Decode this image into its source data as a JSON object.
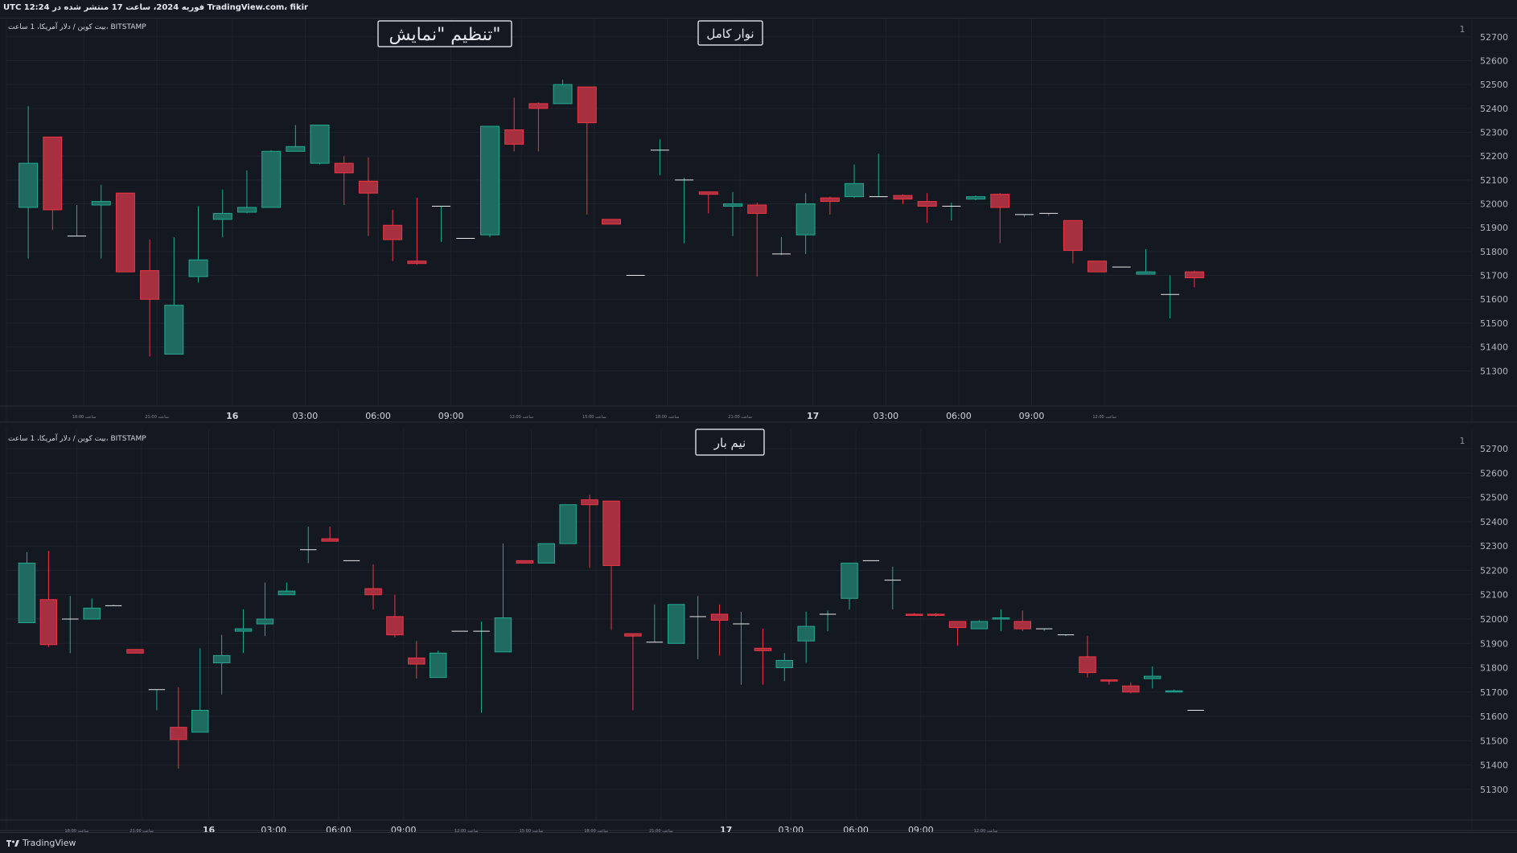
{
  "header": {
    "caption": "UTC 12:24 فوریه 2024، ساعت 17 منتشر شده در TradingView.com، fikir"
  },
  "footer": {
    "brand": "TradingView"
  },
  "colors": {
    "up": "#22ab94",
    "up_fill": "#1f6b5f",
    "down": "#f23645",
    "down_fill": "#a6303f",
    "grid": "#1f232c",
    "bg": "#141821"
  },
  "chart_data": [
    {
      "type": "candlestick",
      "symbol_label": "بیت کوین / دلار آمریکا، 1 ساعت، BITSTAMP",
      "title": "نوار کامل",
      "annotation": "تنظیم \"نمایش\"",
      "scale_marker": "1",
      "y_ticks": [
        52700,
        52600,
        52500,
        52400,
        52300,
        52200,
        52100,
        52000,
        51900,
        51800,
        51700,
        51600,
        51500,
        51400,
        51300
      ],
      "ylim": [
        51220,
        52760
      ],
      "x_major_ticks": [
        {
          "index": 8.4,
          "label": "16"
        },
        {
          "index": 11.4,
          "label": "03:00"
        },
        {
          "index": 14.4,
          "label": "06:00"
        },
        {
          "index": 17.4,
          "label": "09:00"
        },
        {
          "index": 32.3,
          "label": "17"
        },
        {
          "index": 35.3,
          "label": "03:00"
        },
        {
          "index": 38.3,
          "label": "06:00"
        },
        {
          "index": 41.3,
          "label": "09:00"
        }
      ],
      "x_minor_ticks": [
        {
          "index": 2.3,
          "label": "18:00 ساعت"
        },
        {
          "index": 5.3,
          "label": "21:00 ساعت"
        },
        {
          "index": 20.3,
          "label": "12:00 ساعت"
        },
        {
          "index": 23.3,
          "label": "15:00 ساعت"
        },
        {
          "index": 26.3,
          "label": "18:00 ساعت"
        },
        {
          "index": 29.3,
          "label": "21:00 ساعت"
        },
        {
          "index": 44.3,
          "label": "12:00 ساعت"
        }
      ],
      "candles": [
        {
          "o": 51985,
          "h": 52410,
          "l": 51770,
          "c": 52170
        },
        {
          "o": 52280,
          "h": 52280,
          "l": 51890,
          "c": 51975
        },
        {
          "o": 51865,
          "h": 51995,
          "l": 51865,
          "c": 51865
        },
        {
          "o": 51995,
          "h": 52080,
          "l": 51770,
          "c": 52010
        },
        {
          "o": 52045,
          "h": 52045,
          "l": 51715,
          "c": 51715
        },
        {
          "o": 51720,
          "h": 51850,
          "l": 51360,
          "c": 51600
        },
        {
          "o": 51370,
          "h": 51860,
          "l": 51370,
          "c": 51575
        },
        {
          "o": 51695,
          "h": 51990,
          "l": 51670,
          "c": 51765
        },
        {
          "o": 51935,
          "h": 52060,
          "l": 51860,
          "c": 51960
        },
        {
          "o": 51965,
          "h": 52140,
          "l": 51960,
          "c": 51985
        },
        {
          "o": 51985,
          "h": 52225,
          "l": 51985,
          "c": 52220
        },
        {
          "o": 52220,
          "h": 52330,
          "l": 52220,
          "c": 52240
        },
        {
          "o": 52170,
          "h": 52325,
          "l": 52165,
          "c": 52330
        },
        {
          "o": 52170,
          "h": 52200,
          "l": 51995,
          "c": 52130
        },
        {
          "o": 52095,
          "h": 52195,
          "l": 51865,
          "c": 52045
        },
        {
          "o": 51910,
          "h": 51975,
          "l": 51760,
          "c": 51850
        },
        {
          "o": 51760,
          "h": 52025,
          "l": 51745,
          "c": 51750
        },
        {
          "o": 51990,
          "h": 51990,
          "l": 51840,
          "c": 51990
        },
        {
          "o": 51855,
          "h": 51855,
          "l": 51855,
          "c": 51855
        },
        {
          "o": 51870,
          "h": 52320,
          "l": 51860,
          "c": 52325
        },
        {
          "o": 52310,
          "h": 52445,
          "l": 52220,
          "c": 52250
        },
        {
          "o": 52420,
          "h": 52425,
          "l": 52220,
          "c": 52400
        },
        {
          "o": 52420,
          "h": 52520,
          "l": 52420,
          "c": 52500
        },
        {
          "o": 52490,
          "h": 52490,
          "l": 51955,
          "c": 52340
        },
        {
          "o": 51935,
          "h": 51935,
          "l": 51915,
          "c": 51915
        },
        {
          "o": 51700,
          "h": 51700,
          "l": 51700,
          "c": 51700
        },
        {
          "o": 52220,
          "h": 52270,
          "l": 52120,
          "c": 52225
        },
        {
          "o": 52100,
          "h": 52110,
          "l": 51835,
          "c": 52100
        },
        {
          "o": 52050,
          "h": 52050,
          "l": 51960,
          "c": 52040
        },
        {
          "o": 51990,
          "h": 52050,
          "l": 51865,
          "c": 52000
        },
        {
          "o": 51995,
          "h": 52005,
          "l": 51695,
          "c": 51960
        },
        {
          "o": 51785,
          "h": 51860,
          "l": 51785,
          "c": 51790
        },
        {
          "o": 51870,
          "h": 52045,
          "l": 51790,
          "c": 52000
        },
        {
          "o": 52025,
          "h": 52030,
          "l": 51955,
          "c": 52010
        },
        {
          "o": 52030,
          "h": 52165,
          "l": 52025,
          "c": 52085
        },
        {
          "o": 52030,
          "h": 52210,
          "l": 52030,
          "c": 52030
        },
        {
          "o": 52035,
          "h": 52040,
          "l": 52000,
          "c": 52020
        },
        {
          "o": 52010,
          "h": 52045,
          "l": 51920,
          "c": 51990
        },
        {
          "o": 51990,
          "h": 52005,
          "l": 51930,
          "c": 51990
        },
        {
          "o": 52020,
          "h": 52035,
          "l": 52015,
          "c": 52030
        },
        {
          "o": 52040,
          "h": 52045,
          "l": 51835,
          "c": 51985
        },
        {
          "o": 51950,
          "h": 51955,
          "l": 51945,
          "c": 51955
        },
        {
          "o": 51960,
          "h": 51960,
          "l": 51950,
          "c": 51955
        },
        {
          "o": 51930,
          "h": 51930,
          "l": 51750,
          "c": 51805
        },
        {
          "o": 51760,
          "h": 51760,
          "l": 51715,
          "c": 51715
        },
        {
          "o": 51735,
          "h": 51735,
          "l": 51735,
          "c": 51735
        },
        {
          "o": 51705,
          "h": 51810,
          "l": 51705,
          "c": 51715
        },
        {
          "o": 51620,
          "h": 51700,
          "l": 51520,
          "c": 51620
        },
        {
          "o": 51715,
          "h": 51720,
          "l": 51650,
          "c": 51690
        }
      ]
    },
    {
      "type": "candlestick",
      "symbol_label": "بیت کوین / دلار آمریکا، 1 ساعت، BITSTAMP",
      "title": "نیم بار",
      "scale_marker": "1",
      "y_ticks": [
        52700,
        52600,
        52500,
        52400,
        52300,
        52200,
        52100,
        52000,
        51900,
        51800,
        51700,
        51600,
        51500,
        51400,
        51300
      ],
      "ylim": [
        51240,
        52760
      ],
      "x_major_ticks": [
        {
          "index": 8.4,
          "label": "16"
        },
        {
          "index": 11.4,
          "label": "03:00"
        },
        {
          "index": 14.4,
          "label": "06:00"
        },
        {
          "index": 17.4,
          "label": "09:00"
        },
        {
          "index": 32.3,
          "label": "17"
        },
        {
          "index": 35.3,
          "label": "03:00"
        },
        {
          "index": 38.3,
          "label": "06:00"
        },
        {
          "index": 41.3,
          "label": "09:00"
        }
      ],
      "x_minor_ticks": [
        {
          "index": 2.3,
          "label": "18:00 ساعت"
        },
        {
          "index": 5.3,
          "label": "21:00 ساعت"
        },
        {
          "index": 20.3,
          "label": "12:00 ساعت"
        },
        {
          "index": 23.3,
          "label": "15:00 ساعت"
        },
        {
          "index": 26.3,
          "label": "18:00 ساعت"
        },
        {
          "index": 29.3,
          "label": "21:00 ساعت"
        },
        {
          "index": 44.3,
          "label": "12:00 ساعت"
        }
      ],
      "candles": [
        {
          "o": 51985,
          "h": 52275,
          "l": 51985,
          "c": 52230
        },
        {
          "o": 52080,
          "h": 52280,
          "l": 51885,
          "c": 51895
        },
        {
          "o": 52000,
          "h": 52095,
          "l": 51860,
          "c": 52000
        },
        {
          "o": 52000,
          "h": 52085,
          "l": 52000,
          "c": 52045
        },
        {
          "o": 52055,
          "h": 52060,
          "l": 52055,
          "c": 52055
        },
        {
          "o": 51875,
          "h": 51875,
          "l": 51860,
          "c": 51860
        },
        {
          "o": 51710,
          "h": 51710,
          "l": 51625,
          "c": 51710
        },
        {
          "o": 51555,
          "h": 51720,
          "l": 51385,
          "c": 51505
        },
        {
          "o": 51535,
          "h": 51880,
          "l": 51535,
          "c": 51625
        },
        {
          "o": 51820,
          "h": 51935,
          "l": 51690,
          "c": 51850
        },
        {
          "o": 51950,
          "h": 52040,
          "l": 51860,
          "c": 51960
        },
        {
          "o": 51980,
          "h": 52150,
          "l": 51930,
          "c": 52000
        },
        {
          "o": 52100,
          "h": 52150,
          "l": 52100,
          "c": 52115
        },
        {
          "o": 52285,
          "h": 52380,
          "l": 52230,
          "c": 52285
        },
        {
          "o": 52330,
          "h": 52380,
          "l": 52320,
          "c": 52320
        },
        {
          "o": 52240,
          "h": 52240,
          "l": 52240,
          "c": 52240
        },
        {
          "o": 52125,
          "h": 52225,
          "l": 52040,
          "c": 52100
        },
        {
          "o": 52010,
          "h": 52100,
          "l": 51925,
          "c": 51935
        },
        {
          "o": 51840,
          "h": 51910,
          "l": 51755,
          "c": 51815
        },
        {
          "o": 51760,
          "h": 51870,
          "l": 51760,
          "c": 51860
        },
        {
          "o": 51950,
          "h": 51950,
          "l": 51950,
          "c": 51950
        },
        {
          "o": 51950,
          "h": 51990,
          "l": 51615,
          "c": 51950
        },
        {
          "o": 51865,
          "h": 52310,
          "l": 51865,
          "c": 52005
        },
        {
          "o": 52240,
          "h": 52240,
          "l": 52240,
          "c": 52230
        },
        {
          "o": 52230,
          "h": 52310,
          "l": 52230,
          "c": 52310
        },
        {
          "o": 52310,
          "h": 52470,
          "l": 52310,
          "c": 52470
        },
        {
          "o": 52490,
          "h": 52510,
          "l": 52210,
          "c": 52470
        },
        {
          "o": 52485,
          "h": 52485,
          "l": 51955,
          "c": 52220
        },
        {
          "o": 51940,
          "h": 51940,
          "l": 51625,
          "c": 51930
        },
        {
          "o": 51905,
          "h": 52060,
          "l": 51905,
          "c": 51905
        },
        {
          "o": 51900,
          "h": 52060,
          "l": 51900,
          "c": 52060
        },
        {
          "o": 52010,
          "h": 52095,
          "l": 51835,
          "c": 52010
        },
        {
          "o": 52020,
          "h": 52060,
          "l": 51850,
          "c": 51995
        },
        {
          "o": 51980,
          "h": 52030,
          "l": 51730,
          "c": 51980
        },
        {
          "o": 51880,
          "h": 51960,
          "l": 51730,
          "c": 51870
        },
        {
          "o": 51800,
          "h": 51860,
          "l": 51745,
          "c": 51830
        },
        {
          "o": 51910,
          "h": 52030,
          "l": 51820,
          "c": 51970
        },
        {
          "o": 52020,
          "h": 52035,
          "l": 51950,
          "c": 52020
        },
        {
          "o": 52085,
          "h": 52225,
          "l": 52040,
          "c": 52230
        },
        {
          "o": 52240,
          "h": 52240,
          "l": 52240,
          "c": 52240
        },
        {
          "o": 52160,
          "h": 52215,
          "l": 52040,
          "c": 52160
        },
        {
          "o": 52020,
          "h": 52025,
          "l": 52015,
          "c": 52015
        },
        {
          "o": 52020,
          "h": 52025,
          "l": 52010,
          "c": 52015
        },
        {
          "o": 51990,
          "h": 51990,
          "l": 51890,
          "c": 51965
        },
        {
          "o": 51960,
          "h": 51995,
          "l": 51960,
          "c": 51990
        },
        {
          "o": 52000,
          "h": 52040,
          "l": 51950,
          "c": 52005
        },
        {
          "o": 51990,
          "h": 52035,
          "l": 51950,
          "c": 51960
        },
        {
          "o": 51960,
          "h": 51960,
          "l": 51950,
          "c": 51960
        },
        {
          "o": 51935,
          "h": 51935,
          "l": 51930,
          "c": 51935
        },
        {
          "o": 51845,
          "h": 51930,
          "l": 51760,
          "c": 51780
        },
        {
          "o": 51750,
          "h": 51750,
          "l": 51730,
          "c": 51745
        },
        {
          "o": 51725,
          "h": 51740,
          "l": 51695,
          "c": 51700
        },
        {
          "o": 51755,
          "h": 51805,
          "l": 51715,
          "c": 51765
        },
        {
          "o": 51700,
          "h": 51710,
          "l": 51700,
          "c": 51705
        },
        {
          "o": 51625,
          "h": 51625,
          "l": 51625,
          "c": 51625
        }
      ]
    }
  ]
}
